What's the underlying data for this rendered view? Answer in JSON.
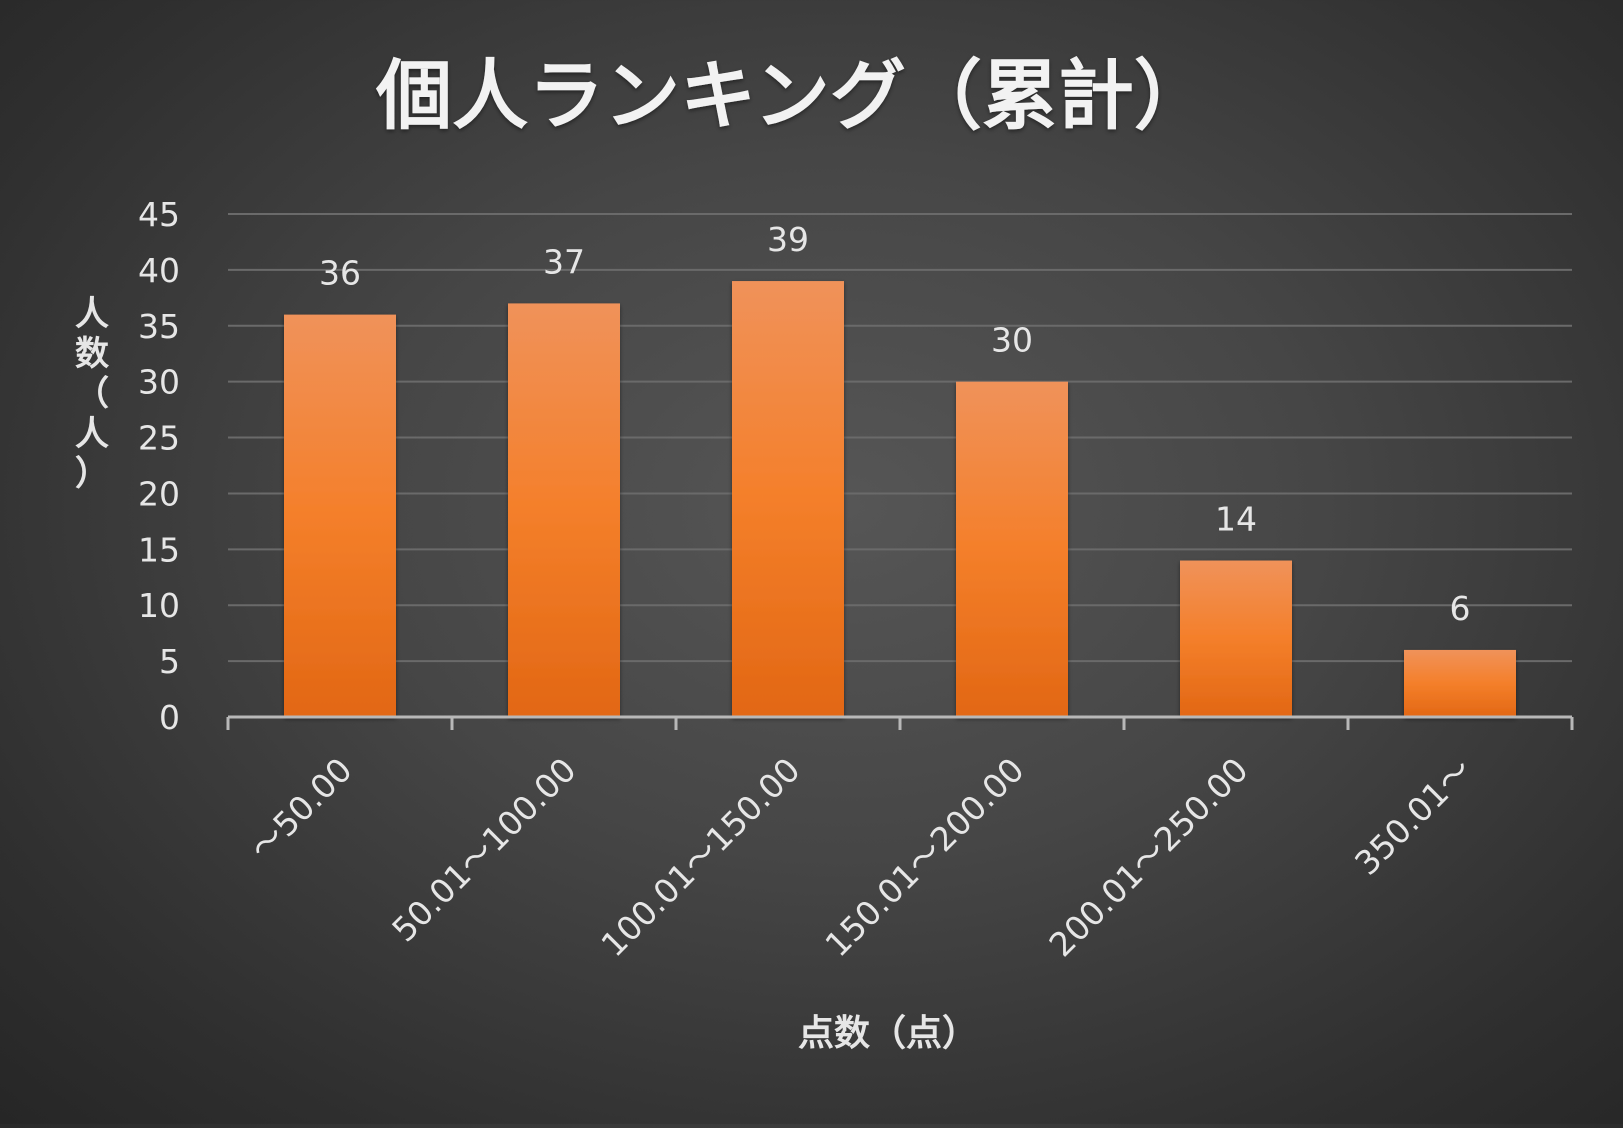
{
  "chart_data": {
    "type": "bar",
    "title": "個人ランキング（累計）",
    "xlabel": "点数（点）",
    "ylabel": "人数（人）",
    "categories": [
      "～50.00",
      "50.01～100.00",
      "100.01～150.00",
      "150.01～200.00",
      "200.01～250.00",
      "350.01～"
    ],
    "values": [
      36,
      37,
      39,
      30,
      14,
      6
    ],
    "ylim": [
      0,
      45
    ],
    "yticks": [
      0,
      5,
      10,
      15,
      20,
      25,
      30,
      35,
      40,
      45
    ],
    "grid": true,
    "data_labels": true,
    "legend": "none",
    "colors": {
      "bar_top": "#f0925a",
      "bar_mid": "#f47f2a",
      "bar_bottom": "#e26714",
      "text": "#e6e6e6",
      "gridline": "#6a6a6a",
      "axis": "#b8b8b8"
    }
  }
}
